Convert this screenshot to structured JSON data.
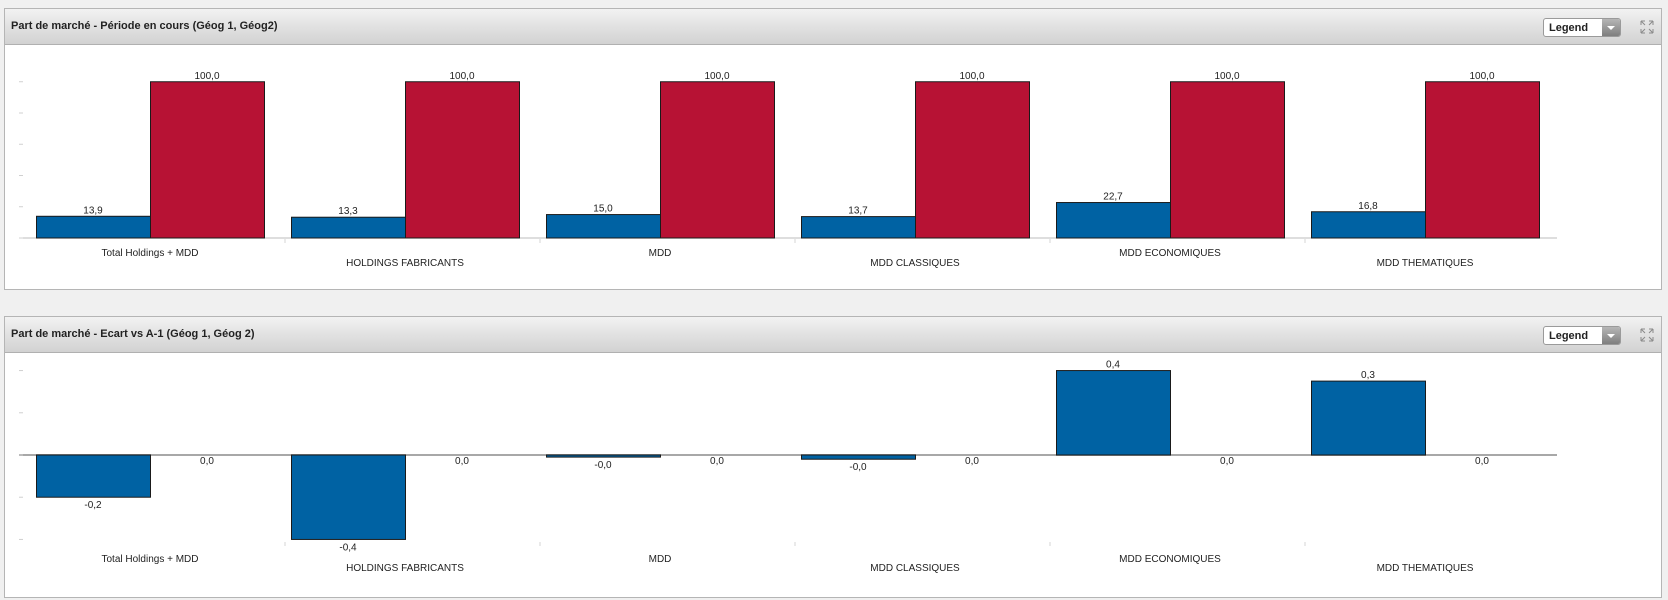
{
  "colors": {
    "series_a": "#0062a3",
    "series_b": "#b71234",
    "axis": "#c0c0c0",
    "text": "#222222"
  },
  "panels": [
    {
      "title": "Part de marché - Période en cours (Géog 1, Géog2)",
      "legend_label": "Legend",
      "expand_icon": "expand-icon"
    },
    {
      "title": "Part de marché - Ecart vs A-1 (Géog 1, Géog 2)",
      "legend_label": "Legend",
      "expand_icon": "expand-icon"
    }
  ],
  "chart_data": [
    {
      "type": "bar",
      "categories": [
        "Total Holdings + MDD",
        "HOLDINGS FABRICANTS",
        "MDD",
        "MDD CLASSIQUES",
        "MDD ECONOMIQUES",
        "MDD THEMATIQUES"
      ],
      "series": [
        {
          "values": [
            13.9,
            13.3,
            15.0,
            13.7,
            22.7,
            16.8
          ],
          "labels": [
            "13,9",
            "13,3",
            "15,0",
            "13,7",
            "22,7",
            "16,8"
          ]
        },
        {
          "values": [
            100,
            100,
            100,
            100,
            100,
            100
          ],
          "labels": [
            "100,0",
            "100,0",
            "100,0",
            "100,0",
            "100,0",
            "100,0"
          ]
        }
      ],
      "ylim": [
        0,
        120
      ],
      "legend": "none",
      "grid": false
    },
    {
      "type": "bar",
      "categories": [
        "Total Holdings + MDD",
        "HOLDINGS FABRICANTS",
        "MDD",
        "MDD CLASSIQUES",
        "MDD ECONOMIQUES",
        "MDD THEMATIQUES"
      ],
      "series": [
        {
          "values": [
            -0.2,
            -0.4,
            -0.01,
            -0.02,
            0.4,
            0.35
          ],
          "labels": [
            "-0,2",
            "-0,4",
            "-0,0",
            "-0,0",
            "0,4",
            "0,3"
          ]
        },
        {
          "values": [
            0,
            0,
            0,
            0,
            0,
            0
          ],
          "labels": [
            "0,0",
            "0,0",
            "0,0",
            "0,0",
            "0,0",
            "0,0"
          ]
        }
      ],
      "ylim": [
        -0.45,
        0.45
      ],
      "legend": "none",
      "grid": false
    }
  ]
}
